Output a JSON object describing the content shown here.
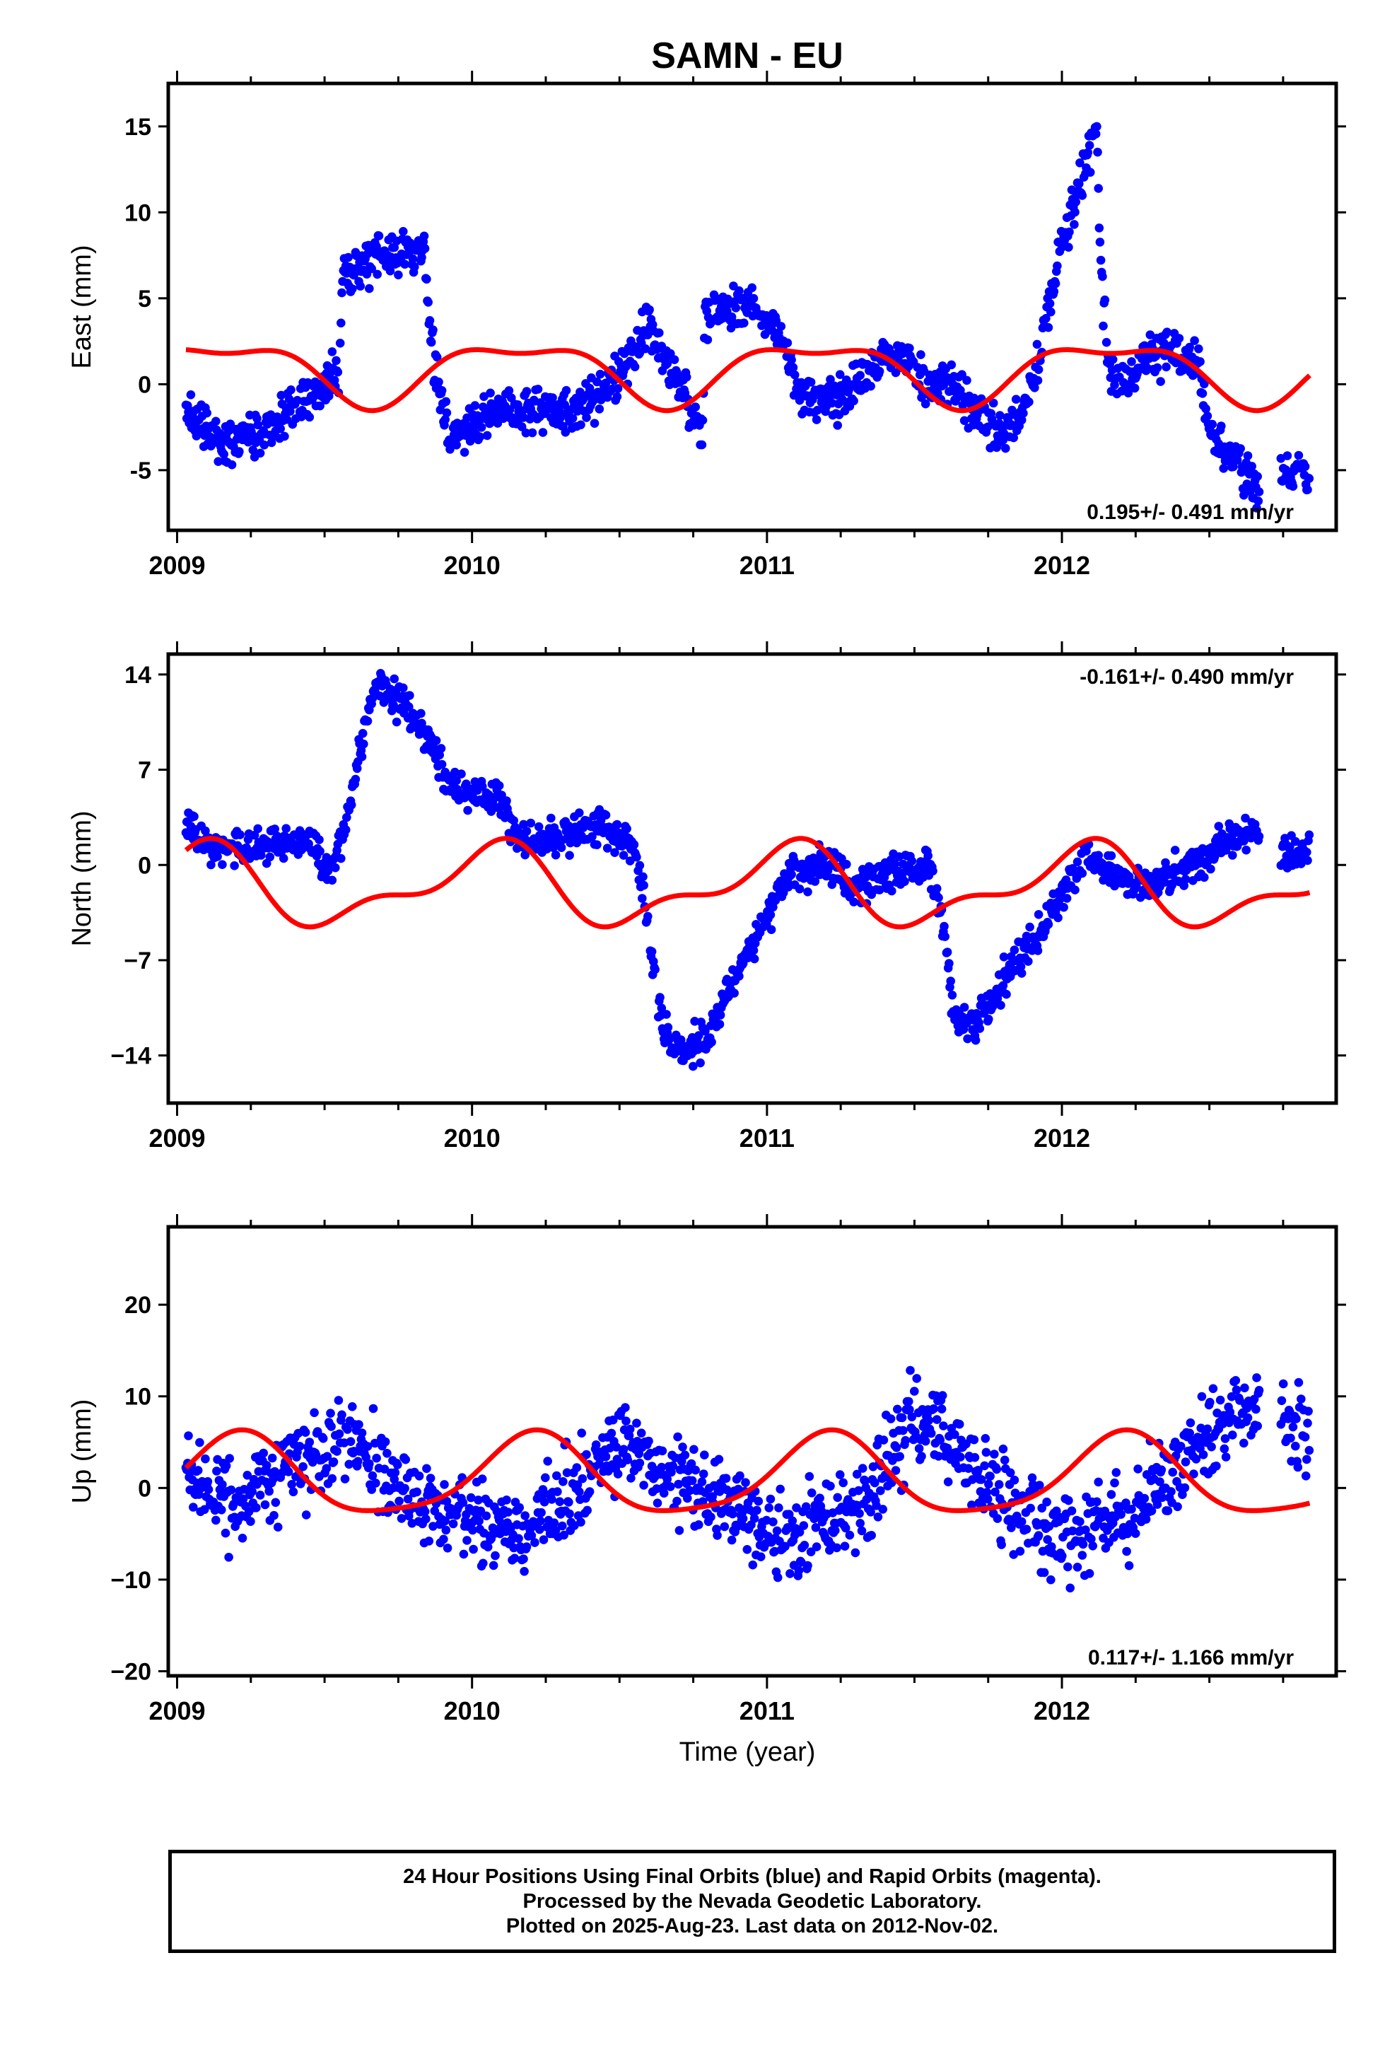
{
  "title": "SAMN - EU",
  "xlabel": "Time (year)",
  "colors": {
    "final_orbits": "#0000ff",
    "model_fit": "#ff0000",
    "frame": "#000000"
  },
  "chart_data": [
    {
      "type": "scatter",
      "ylabel": "East (mm)",
      "xlim": [
        2008.97,
        2012.93
      ],
      "ylim": [
        -8.5,
        17.5
      ],
      "xticks": [
        2009,
        2010,
        2011,
        2012
      ],
      "yticks": [
        -5,
        0,
        5,
        10,
        15
      ],
      "rate": "0.195+/- 0.491 mm/yr",
      "rate_position": "bottom-right",
      "series": [
        {
          "role": "observations",
          "x_start": 2009.03,
          "x_end": 2012.84,
          "gap": [
            2012.67,
            2012.74
          ],
          "seed": 11,
          "anchors": [
            [
              2009.03,
              -1.5
            ],
            [
              2009.15,
              -3.5
            ],
            [
              2009.3,
              -2.5
            ],
            [
              2009.45,
              -0.5
            ],
            [
              2009.55,
              0.5
            ],
            [
              2009.56,
              6.5
            ],
            [
              2009.7,
              7.5
            ],
            [
              2009.84,
              8.0
            ],
            [
              2009.86,
              2.5
            ],
            [
              2009.92,
              -3.0
            ],
            [
              2010.1,
              -1.5
            ],
            [
              2010.35,
              -1.5
            ],
            [
              2010.5,
              0.5
            ],
            [
              2010.6,
              3.5
            ],
            [
              2010.67,
              1.0
            ],
            [
              2010.74,
              -1.5
            ],
            [
              2010.78,
              -3.0
            ],
            [
              2010.79,
              4.0
            ],
            [
              2010.95,
              4.5
            ],
            [
              2011.05,
              3.0
            ],
            [
              2011.1,
              -0.5
            ],
            [
              2011.25,
              -1.0
            ],
            [
              2011.35,
              1.0
            ],
            [
              2011.45,
              2.0
            ],
            [
              2011.55,
              -0.5
            ],
            [
              2011.62,
              0.5
            ],
            [
              2011.7,
              -1.5
            ],
            [
              2011.78,
              -3.0
            ],
            [
              2011.86,
              -2.0
            ],
            [
              2011.92,
              1.0
            ],
            [
              2011.96,
              5.0
            ],
            [
              2012.0,
              8.5
            ],
            [
              2012.07,
              12.0
            ],
            [
              2012.12,
              15.0
            ],
            [
              2012.13,
              7.0
            ],
            [
              2012.16,
              1.0
            ],
            [
              2012.22,
              0.0
            ],
            [
              2012.28,
              1.5
            ],
            [
              2012.4,
              2.0
            ],
            [
              2012.46,
              1.0
            ],
            [
              2012.5,
              -3.0
            ],
            [
              2012.58,
              -4.5
            ],
            [
              2012.67,
              -6.0
            ],
            [
              2012.74,
              -5.0
            ],
            [
              2012.84,
              -5.5
            ]
          ],
          "noise": 1.1
        },
        {
          "role": "model",
          "offset": 0.8,
          "linear": 0.0,
          "annual": [
            0.9,
            1.4
          ],
          "semiannual": [
            0.3,
            -0.6
          ]
        }
      ]
    },
    {
      "type": "scatter",
      "ylabel": "North (mm)",
      "xlim": [
        2008.97,
        2012.93
      ],
      "ylim": [
        -17.5,
        15.5
      ],
      "xticks": [
        2009,
        2010,
        2011,
        2012
      ],
      "yticks": [
        -14,
        -7,
        0,
        7,
        14
      ],
      "ytick_labels": [
        "−14",
        "−7",
        "0",
        "7",
        "14"
      ],
      "rate": "-0.161+/- 0.490 mm/yr",
      "rate_position": "top-right",
      "series": [
        {
          "role": "observations",
          "x_start": 2009.03,
          "x_end": 2012.84,
          "gap": [
            2012.67,
            2012.74
          ],
          "seed": 23,
          "anchors": [
            [
              2009.03,
              3.0
            ],
            [
              2009.1,
              1.5
            ],
            [
              2009.3,
              1.2
            ],
            [
              2009.45,
              2.0
            ],
            [
              2009.52,
              -0.8
            ],
            [
              2009.56,
              2.0
            ],
            [
              2009.62,
              8.0
            ],
            [
              2009.67,
              13.5
            ],
            [
              2009.75,
              12.0
            ],
            [
              2009.85,
              9.5
            ],
            [
              2009.9,
              6.5
            ],
            [
              2010.0,
              5.0
            ],
            [
              2010.08,
              5.5
            ],
            [
              2010.15,
              2.0
            ],
            [
              2010.3,
              2.2
            ],
            [
              2010.45,
              3.0
            ],
            [
              2010.55,
              1.2
            ],
            [
              2010.6,
              -4.5
            ],
            [
              2010.63,
              -11.0
            ],
            [
              2010.68,
              -13.5
            ],
            [
              2010.8,
              -13.0
            ],
            [
              2010.85,
              -10.0
            ],
            [
              2010.92,
              -7.0
            ],
            [
              2011.0,
              -4.0
            ],
            [
              2011.08,
              -0.5
            ],
            [
              2011.2,
              0.0
            ],
            [
              2011.3,
              -1.5
            ],
            [
              2011.45,
              -0.5
            ],
            [
              2011.55,
              0.0
            ],
            [
              2011.6,
              -4.5
            ],
            [
              2011.63,
              -11.0
            ],
            [
              2011.7,
              -12.0
            ],
            [
              2011.76,
              -10.0
            ],
            [
              2011.85,
              -7.0
            ],
            [
              2011.95,
              -4.5
            ],
            [
              2012.0,
              -2.0
            ],
            [
              2012.08,
              0.5
            ],
            [
              2012.2,
              -1.0
            ],
            [
              2012.3,
              -1.5
            ],
            [
              2012.45,
              0.0
            ],
            [
              2012.55,
              1.5
            ],
            [
              2012.67,
              2.5
            ],
            [
              2012.74,
              1.0
            ],
            [
              2012.84,
              1.0
            ]
          ],
          "noise": 1.1
        },
        {
          "role": "model",
          "offset": -1.6,
          "linear": 0.0,
          "annual": [
            2.4,
            0.9
          ],
          "semiannual": [
            -0.3,
            1.2
          ]
        }
      ]
    },
    {
      "type": "scatter",
      "ylabel": "Up (mm)",
      "xlim": [
        2008.97,
        2012.93
      ],
      "ylim": [
        -20.5,
        28.5
      ],
      "xticks": [
        2009,
        2010,
        2011,
        2012
      ],
      "yticks": [
        -20,
        -10,
        0,
        10,
        20
      ],
      "ytick_labels": [
        "−20",
        "−10",
        "0",
        "10",
        "20"
      ],
      "rate": "0.117+/- 1.166 mm/yr",
      "rate_position": "bottom-right",
      "series": [
        {
          "role": "observations",
          "x_start": 2009.03,
          "x_end": 2012.84,
          "gap": [
            2012.67,
            2012.74
          ],
          "seed": 37,
          "anchors": [
            [
              2009.03,
              1.0
            ],
            [
              2009.2,
              -2.0
            ],
            [
              2009.4,
              2.5
            ],
            [
              2009.6,
              5.0
            ],
            [
              2009.8,
              -1.5
            ],
            [
              2010.0,
              -3.5
            ],
            [
              2010.15,
              -5.0
            ],
            [
              2010.3,
              -1.0
            ],
            [
              2010.5,
              5.0
            ],
            [
              2010.65,
              2.0
            ],
            [
              2010.85,
              -1.5
            ],
            [
              2011.05,
              -6.0
            ],
            [
              2011.2,
              -4.0
            ],
            [
              2011.35,
              -1.0
            ],
            [
              2011.5,
              8.0
            ],
            [
              2011.65,
              4.5
            ],
            [
              2011.85,
              -3.0
            ],
            [
              2012.0,
              -5.0
            ],
            [
              2012.15,
              -4.0
            ],
            [
              2012.3,
              -1.0
            ],
            [
              2012.5,
              6.0
            ],
            [
              2012.67,
              10.0
            ],
            [
              2012.74,
              7.0
            ],
            [
              2012.84,
              6.0
            ]
          ],
          "noise": 4.0
        },
        {
          "role": "model",
          "offset": 1.1,
          "linear": 0.0,
          "annual": [
            1.1,
            4.2
          ],
          "semiannual": [
            -0.9,
            0.2
          ]
        }
      ]
    }
  ],
  "footer": {
    "line1": "24 Hour Positions Using Final Orbits (blue) and Rapid Orbits (magenta).",
    "line2": "Processed by the Nevada Geodetic Laboratory.",
    "line3": "Plotted on 2025-Aug-23. Last data on 2012-Nov-02."
  }
}
